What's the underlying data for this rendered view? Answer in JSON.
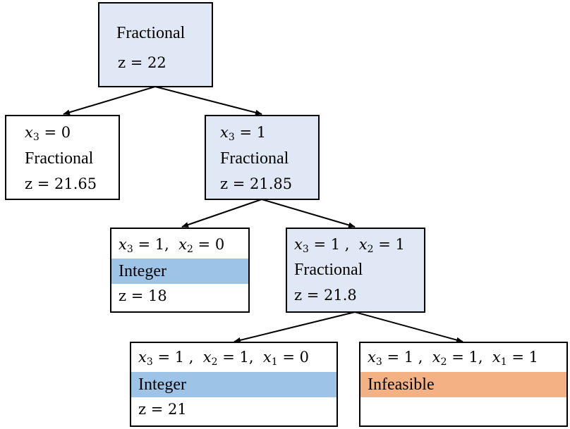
{
  "nodes": {
    "root": {
      "status": "Fractional",
      "z": "z = 22"
    },
    "n_x3_0": {
      "constraint": "x3 = 0",
      "status": "Fractional",
      "z": "z = 21.65"
    },
    "n_x3_1": {
      "constraint": "x3 = 1",
      "status": "Fractional",
      "z": "z = 21.85"
    },
    "n_x3_1_x2_0": {
      "constraint": "x3 = 1,  x2 = 0",
      "status": "Integer",
      "z": "z = 18"
    },
    "n_x3_1_x2_1": {
      "constraint": "x3 = 1 ,  x2 = 1",
      "status": "Fractional",
      "z": "z = 21.8"
    },
    "n_x3_1_x2_1_x1_0": {
      "constraint": "x3 = 1 ,  x2 = 1,  x1 = 0",
      "status": "Integer",
      "z": "z = 21"
    },
    "n_x3_1_x2_1_x1_1": {
      "constraint": "x3 = 1 ,  x2 = 1,  x1 = 1",
      "status": "Infeasible",
      "z": ""
    }
  },
  "colors": {
    "explored_node_fill": "#dfe8f4",
    "integer_band": "#9dc3e6",
    "infeasible_band": "#f4b183",
    "edge": "#000000"
  }
}
